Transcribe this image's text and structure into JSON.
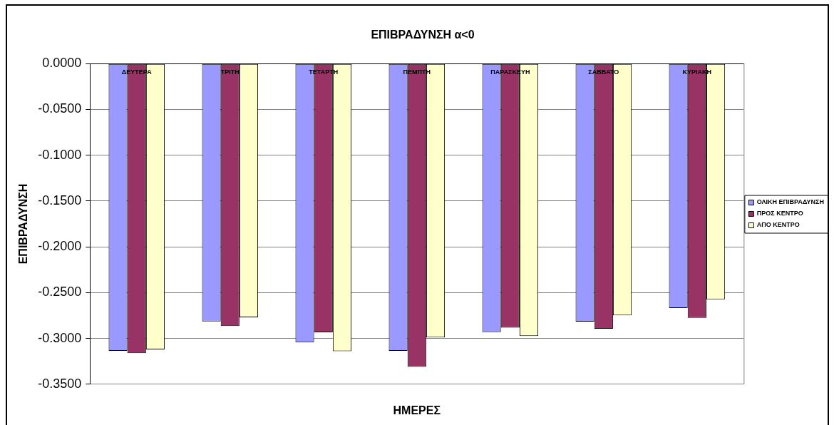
{
  "chart_data": {
    "type": "bar",
    "title": "ΕΠΙΒΡΑΔΥΝΣΗ α<0",
    "xlabel": "ΗΜΕΡΕΣ",
    "ylabel": "ΕΠΙΒΡΑΔΥΝΣΗ",
    "categories": [
      "ΔΕΥΤΕΡΑ",
      "ΤΡΙΤΗ",
      "ΤΕΤΑΡΤΗ",
      "ΠΕΜΠΤΗ",
      "ΠΑΡΑΣΚΕΥΗ",
      "ΣΑΒΒΑΤΟ",
      "ΚΥΡΙΑΚΗ"
    ],
    "series": [
      {
        "name": "ΟΛΙΚΗ ΕΠΙΒΡΑΔΥΝΣΗ",
        "color": "#9999ff",
        "values": [
          -0.3136,
          -0.2815,
          -0.3044,
          -0.3136,
          -0.2932,
          -0.2816,
          -0.2669
        ]
      },
      {
        "name": "ΠΡΟΣ ΚΕΝΤΡΟ",
        "color": "#993366",
        "values": [
          -0.316,
          -0.2866,
          -0.2934,
          -0.331,
          -0.2883,
          -0.2894,
          -0.2775
        ]
      },
      {
        "name": "ΑΠΟ ΚΕΝΤΡΟ",
        "color": "#ffffcc",
        "values": [
          -0.312,
          -0.277,
          -0.314,
          -0.299,
          -0.2974,
          -0.2749,
          -0.2573
        ]
      }
    ],
    "ylim": [
      -0.35,
      0
    ],
    "yticks": [
      {
        "value": 0,
        "label": "0.0000"
      },
      {
        "value": -0.05,
        "label": "-0.0500"
      },
      {
        "value": -0.1,
        "label": "-0.1000"
      },
      {
        "value": -0.15,
        "label": "-0.1500"
      },
      {
        "value": -0.2,
        "label": "-0.2000"
      },
      {
        "value": -0.25,
        "label": "-0.2500"
      },
      {
        "value": -0.3,
        "label": "-0.3000"
      },
      {
        "value": -0.35,
        "label": "-0.3500"
      }
    ],
    "grid": "y",
    "legend": "right"
  }
}
